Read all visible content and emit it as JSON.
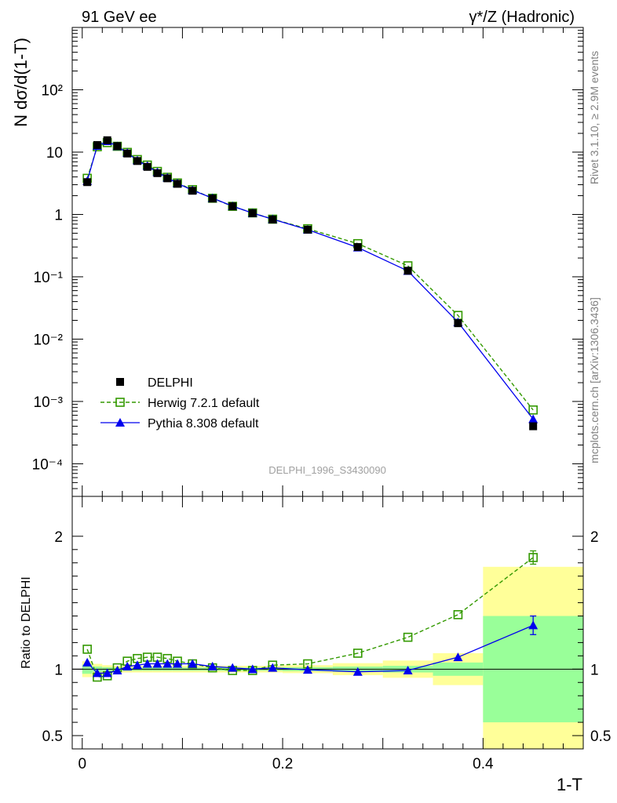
{
  "header": {
    "left_label": "91 GeV ee",
    "right_label": "γ*/Z (Hadronic)"
  },
  "side_labels": {
    "top": "Rivet 3.1.10, ≥ 2.9M events",
    "bottom": "mcplots.cern.ch [arXiv:1306.3436]"
  },
  "analysis_id": "DELPHI_1996_S3430090",
  "colors": {
    "data": "#000000",
    "herwig": "#339900",
    "pythia": "#0000ee",
    "band_inner": "#99ff99",
    "band_outer": "#ffff99"
  },
  "chart_data": [
    {
      "type": "scatter",
      "panel": "main",
      "ylabel": "N dσ/d(1-T)",
      "yscale": "log",
      "ylim": [
        3e-05,
        1000
      ],
      "xlim": [
        -0.01,
        0.5
      ],
      "y_ticks": [
        "10⁻⁴",
        "10⁻³",
        "10⁻²",
        "10⁻¹",
        "1",
        "10",
        "10²"
      ],
      "y_tick_values": [
        0.0001,
        0.001,
        0.01,
        0.1,
        1,
        10,
        100
      ],
      "legend_position": "bottom-left",
      "x": [
        0.005,
        0.015,
        0.025,
        0.035,
        0.045,
        0.055,
        0.065,
        0.075,
        0.085,
        0.095,
        0.11,
        0.13,
        0.15,
        0.17,
        0.19,
        0.225,
        0.275,
        0.325,
        0.375,
        0.45
      ],
      "series": [
        {
          "name": "DELPHI",
          "style": "data",
          "values": [
            3.3,
            13.0,
            15.5,
            12.5,
            9.5,
            7.2,
            5.8,
            4.6,
            3.8,
            3.1,
            2.4,
            1.8,
            1.35,
            1.05,
            0.83,
            0.57,
            0.3,
            0.125,
            0.018,
            0.0004
          ]
        },
        {
          "name": "Herwig 7.2.1 default",
          "style": "herwig",
          "values": [
            3.8,
            12.2,
            14.2,
            12.4,
            9.9,
            7.6,
            6.2,
            4.9,
            3.95,
            3.2,
            2.5,
            1.82,
            1.35,
            1.06,
            0.84,
            0.59,
            0.34,
            0.15,
            0.024,
            0.00073
          ]
        },
        {
          "name": "Pythia 8.308 default",
          "style": "pythia",
          "values": [
            3.45,
            12.6,
            15.0,
            12.4,
            9.7,
            7.35,
            6.0,
            4.75,
            3.9,
            3.15,
            2.45,
            1.83,
            1.36,
            1.05,
            0.84,
            0.57,
            0.295,
            0.124,
            0.0187,
            0.00052
          ]
        }
      ]
    },
    {
      "type": "scatter",
      "panel": "ratio",
      "xlabel": "1-T",
      "ylabel": "Ratio to DELPHI",
      "ylim": [
        0.4,
        2.3
      ],
      "xlim": [
        -0.01,
        0.5
      ],
      "y_ticks": [
        "0.5",
        "1",
        "2"
      ],
      "y_tick_values": [
        0.5,
        1,
        2
      ],
      "x_ticks": [
        "0",
        "0.2",
        "0.4"
      ],
      "x_tick_values": [
        0,
        0.2,
        0.4
      ],
      "x": [
        0.005,
        0.015,
        0.025,
        0.035,
        0.045,
        0.055,
        0.065,
        0.075,
        0.085,
        0.095,
        0.11,
        0.13,
        0.15,
        0.17,
        0.19,
        0.225,
        0.275,
        0.325,
        0.375,
        0.45
      ],
      "bins": [
        [
          0,
          0.01
        ],
        [
          0.01,
          0.02
        ],
        [
          0.02,
          0.03
        ],
        [
          0.03,
          0.04
        ],
        [
          0.04,
          0.05
        ],
        [
          0.05,
          0.06
        ],
        [
          0.06,
          0.07
        ],
        [
          0.07,
          0.08
        ],
        [
          0.08,
          0.09
        ],
        [
          0.09,
          0.1
        ],
        [
          0.1,
          0.12
        ],
        [
          0.12,
          0.14
        ],
        [
          0.14,
          0.16
        ],
        [
          0.16,
          0.18
        ],
        [
          0.18,
          0.2
        ],
        [
          0.2,
          0.25
        ],
        [
          0.25,
          0.3
        ],
        [
          0.3,
          0.35
        ],
        [
          0.35,
          0.4
        ],
        [
          0.4,
          0.5
        ]
      ],
      "band_inner": [
        0.035,
        0.02,
        0.015,
        0.012,
        0.012,
        0.012,
        0.012,
        0.012,
        0.012,
        0.012,
        0.012,
        0.012,
        0.012,
        0.012,
        0.012,
        0.015,
        0.02,
        0.025,
        0.05,
        0.4
      ],
      "band_outer": [
        0.06,
        0.04,
        0.03,
        0.025,
        0.025,
        0.025,
        0.025,
        0.025,
        0.025,
        0.025,
        0.025,
        0.025,
        0.025,
        0.025,
        0.025,
        0.03,
        0.045,
        0.065,
        0.12,
        0.77
      ],
      "series": [
        {
          "name": "Herwig 7.2.1 default",
          "style": "herwig",
          "values": [
            1.15,
            0.94,
            0.95,
            1.01,
            1.06,
            1.08,
            1.09,
            1.09,
            1.08,
            1.06,
            1.04,
            1.01,
            0.99,
            0.99,
            1.03,
            1.04,
            1.12,
            1.24,
            1.41,
            1.84
          ],
          "errors": [
            0,
            0,
            0,
            0,
            0,
            0,
            0,
            0,
            0,
            0,
            0,
            0,
            0,
            0,
            0,
            0,
            0,
            0,
            0,
            0.05
          ]
        },
        {
          "name": "Pythia 8.308 default",
          "style": "pythia",
          "values": [
            1.05,
            0.97,
            0.97,
            0.99,
            1.02,
            1.03,
            1.04,
            1.04,
            1.04,
            1.04,
            1.04,
            1.02,
            1.01,
            1.0,
            1.01,
            0.995,
            0.98,
            0.99,
            1.09,
            1.33
          ],
          "errors": [
            0,
            0,
            0,
            0,
            0,
            0,
            0,
            0,
            0,
            0,
            0,
            0,
            0,
            0,
            0,
            0,
            0,
            0,
            0,
            0.07
          ]
        }
      ]
    }
  ]
}
